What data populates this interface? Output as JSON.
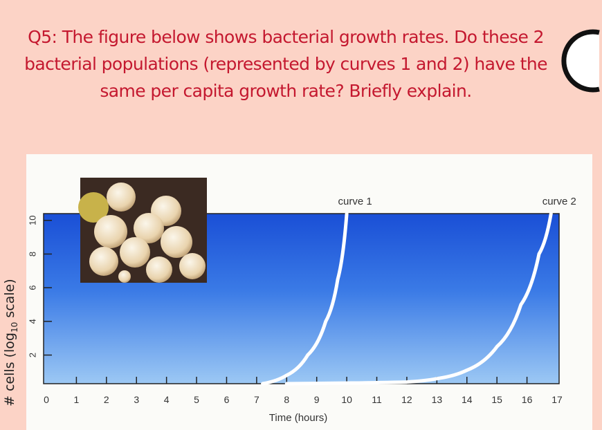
{
  "slide": {
    "question_label": "Q5:",
    "question_text": "The figure below shows bacterial growth rates. Do these 2 bacterial populations (represented by curves 1 and 2) have the same per capita growth rate? Briefly explain.",
    "title_color": "#c4182f",
    "background_color": "#fcd3c6"
  },
  "inset_image": "bacteria-micrograph",
  "chart_data": {
    "type": "line",
    "title": "",
    "xlabel": "Time (hours)",
    "ylabel_main": "# cells (log",
    "ylabel_sub": "10",
    "ylabel_end": " scale)",
    "xlim": [
      0,
      17
    ],
    "ylim": [
      0.3,
      10.4
    ],
    "x_ticks": [
      0,
      1,
      2,
      3,
      4,
      5,
      6,
      7,
      8,
      9,
      10,
      11,
      12,
      13,
      14,
      15,
      16,
      17
    ],
    "y_ticks": [
      2,
      4,
      6,
      8,
      10
    ],
    "grid": false,
    "background": "blue-gradient",
    "series": [
      {
        "name": "curve 1",
        "color": "#ffffff",
        "x": [
          7.2,
          8.0,
          8.7,
          9.3,
          9.7,
          10.0
        ],
        "y": [
          0.3,
          0.8,
          2.0,
          4.0,
          6.5,
          10.4
        ]
      },
      {
        "name": "curve 2",
        "color": "#ffffff",
        "x": [
          8.0,
          12.0,
          13.0,
          14.0,
          15.0,
          15.8,
          16.4,
          16.8
        ],
        "y": [
          0.3,
          0.4,
          0.6,
          1.1,
          2.5,
          5.0,
          8.0,
          10.4
        ]
      }
    ]
  }
}
